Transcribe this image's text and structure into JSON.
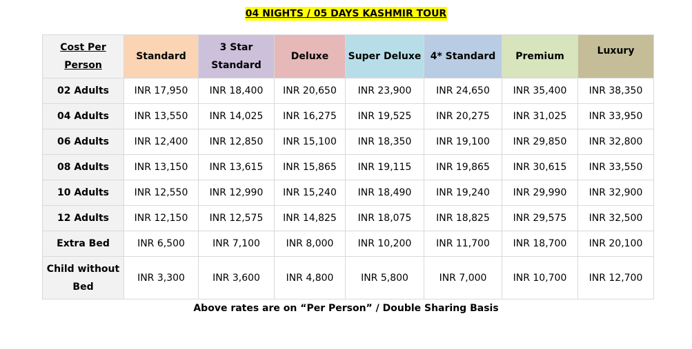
{
  "title": "04 NIGHTS / 05 DAYS KASHMIR TOUR",
  "table": {
    "corner_label": "Cost Per Person",
    "columns": [
      {
        "label": "Standard",
        "color": "#fbd4b4"
      },
      {
        "label": "3 Star Standard",
        "color": "#ccc0da"
      },
      {
        "label": "Deluxe",
        "color": "#e6b8b7"
      },
      {
        "label": "Super Deluxe",
        "color": "#b7dee8"
      },
      {
        "label": "4* Standard",
        "color": "#b8cce4"
      },
      {
        "label": "Premium",
        "color": "#d7e4bc"
      },
      {
        "label": "Luxury",
        "color": "#c4bd97"
      }
    ],
    "rows": [
      {
        "label": "02 Adults",
        "values": [
          "INR 17,950",
          "INR 18,400",
          "INR 20,650",
          "INR 23,900",
          "INR 24,650",
          "INR 35,400",
          "INR 38,350"
        ]
      },
      {
        "label": "04 Adults",
        "values": [
          "INR 13,550",
          "INR 14,025",
          "INR 16,275",
          "INR 19,525",
          "INR 20,275",
          "INR 31,025",
          "INR 33,950"
        ]
      },
      {
        "label": "06 Adults",
        "values": [
          "INR 12,400",
          "INR 12,850",
          "INR 15,100",
          "INR 18,350",
          "INR 19,100",
          "INR 29,850",
          "INR 32,800"
        ]
      },
      {
        "label": "08 Adults",
        "values": [
          "INR 13,150",
          "INR 13,615",
          "INR 15,865",
          "INR 19,115",
          "INR 19,865",
          "INR 30,615",
          "INR 33,550"
        ]
      },
      {
        "label": "10 Adults",
        "values": [
          "INR 12,550",
          "INR 12,990",
          "INR 15,240",
          "INR 18,490",
          "INR 19,240",
          "INR 29,990",
          "INR 32,900"
        ]
      },
      {
        "label": "12 Adults",
        "values": [
          "INR 12,150",
          "INR 12,575",
          "INR 14,825",
          "INR 18,075",
          "INR 18,825",
          "INR 29,575",
          "INR 32,500"
        ]
      },
      {
        "label": "Extra Bed",
        "values": [
          "INR 6,500",
          "INR 7,100",
          "INR 8,000",
          "INR 10,200",
          "INR 11,700",
          "INR 18,700",
          "INR 20,100"
        ]
      },
      {
        "label": "Child without Bed",
        "values": [
          "INR 3,300",
          "INR 3,600",
          "INR 4,800",
          "INR 5,800",
          "INR 7,000",
          "INR 10,700",
          "INR 12,700"
        ]
      }
    ]
  },
  "note": "Above rates are on “Per Person” / Double Sharing Basis"
}
